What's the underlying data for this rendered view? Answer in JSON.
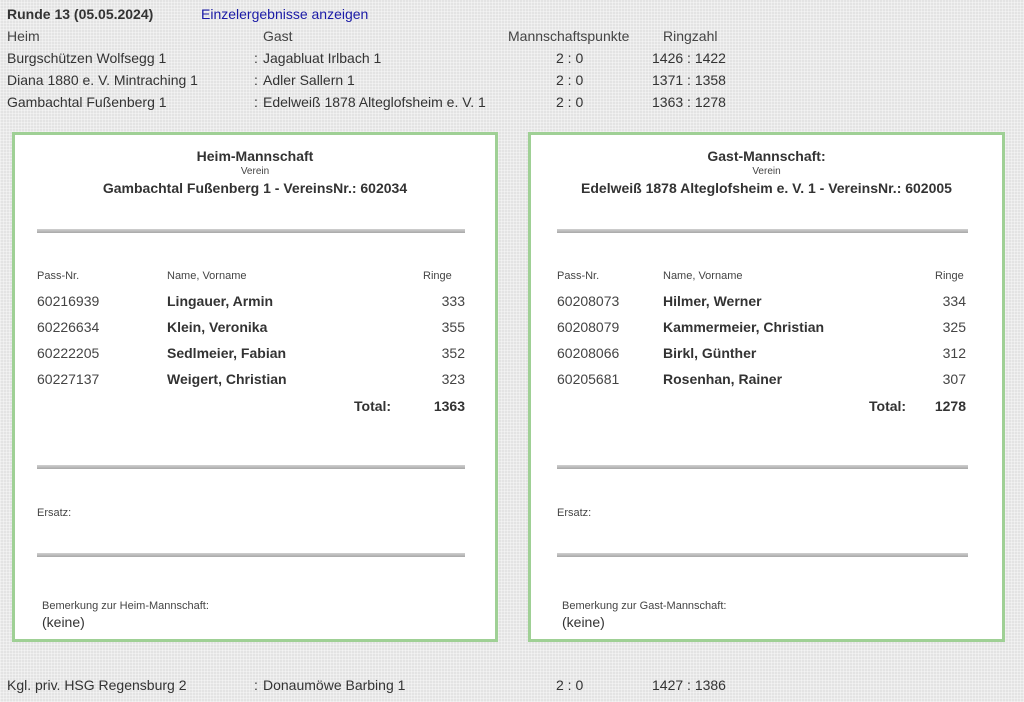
{
  "round": {
    "title": "Runde 13  (05.05.2024)",
    "details_link": "Einzelergebnisse anzeigen"
  },
  "headers": {
    "home": "Heim",
    "guest": "Gast",
    "points": "Mannschaftspunkte",
    "rings": "Ringzahl"
  },
  "matches": [
    {
      "home": "Burgschützen Wolfsegg 1",
      "sep": ":",
      "guest": "Jagabluat Irlbach 1",
      "points": "2 : 0",
      "rings": "1426 : 1422"
    },
    {
      "home": "Diana 1880 e. V. Mintraching 1",
      "sep": ":",
      "guest": "Adler Sallern 1",
      "points": "2 : 0",
      "rings": "1371 : 1358"
    },
    {
      "home": "Gambachtal Fußenberg 1",
      "sep": ":",
      "guest": "Edelweiß 1878 Alteglofsheim e. V. 1",
      "points": "2 : 0",
      "rings": "1363 : 1278"
    }
  ],
  "home_team": {
    "title": "Heim-Mannschaft",
    "verein_label": "Verein",
    "club": "Gambachtal Fußenberg 1  -  VereinsNr.: 602034",
    "col_pass": "Pass-Nr.",
    "col_name": "Name, Vorname",
    "col_rings": "Ringe",
    "shooters": [
      {
        "pass": "60216939",
        "name": "Lingauer, Armin",
        "rings": "333"
      },
      {
        "pass": "60226634",
        "name": "Klein, Veronika",
        "rings": "355"
      },
      {
        "pass": "60222205",
        "name": "Sedlmeier, Fabian",
        "rings": "352"
      },
      {
        "pass": "60227137",
        "name": "Weigert, Christian",
        "rings": "323"
      }
    ],
    "total_label": "Total:",
    "total": "1363",
    "ersatz_label": "Ersatz:",
    "remark_label": "Bemerkung zur Heim-Mannschaft:",
    "remark": "(keine)"
  },
  "guest_team": {
    "title": "Gast-Mannschaft:",
    "verein_label": "Verein",
    "club": "Edelweiß 1878 Alteglofsheim e. V. 1  -  VereinsNr.: 602005",
    "col_pass": "Pass-Nr.",
    "col_name": "Name, Vorname",
    "col_rings": "Ringe",
    "shooters": [
      {
        "pass": "60208073",
        "name": "Hilmer, Werner",
        "rings": "334"
      },
      {
        "pass": "60208079",
        "name": "Kammermeier, Christian",
        "rings": "325"
      },
      {
        "pass": "60208066",
        "name": "Birkl, Günther",
        "rings": "312"
      },
      {
        "pass": "60205681",
        "name": "Rosenhan, Rainer",
        "rings": "307"
      }
    ],
    "total_label": "Total:",
    "total": "1278",
    "ersatz_label": "Ersatz:",
    "remark_label": "Bemerkung zur Gast-Mannschaft:",
    "remark": "(keine)"
  },
  "extra_match": {
    "home": "Kgl. priv. HSG Regensburg 2",
    "sep": ":",
    "guest": "Donaumöwe Barbing 1",
    "points": "2 : 0",
    "rings": "1427 : 1386"
  }
}
